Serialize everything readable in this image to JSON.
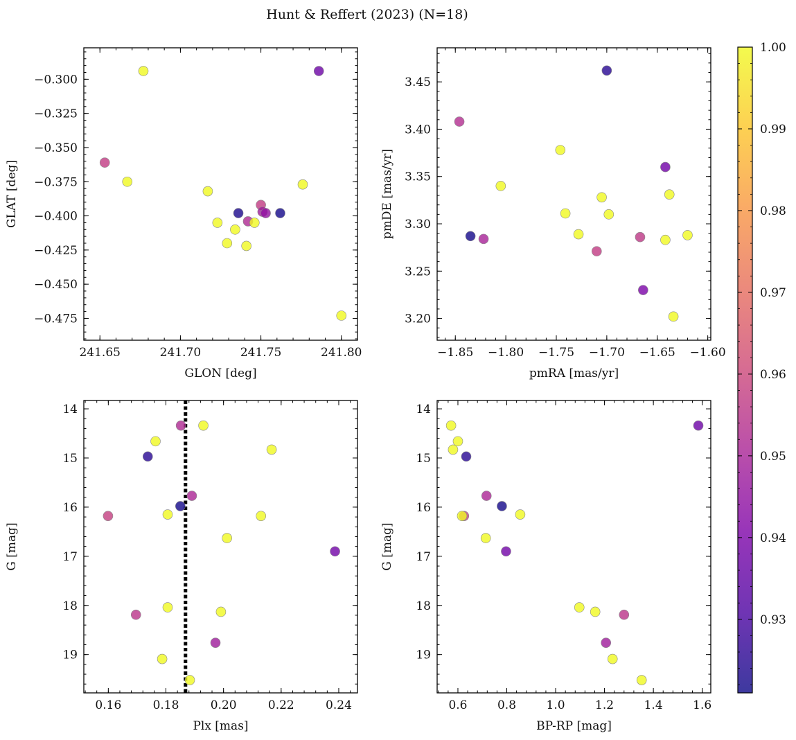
{
  "figure": {
    "title": "Hunt & Reffert (2023) (N=18)",
    "colorbar": {
      "min": 0.921,
      "max": 1.0,
      "ticks": [
        0.93,
        0.94,
        0.95,
        0.96,
        0.97,
        0.98,
        0.99,
        1.0
      ],
      "tick_labels": [
        "0.93",
        "0.94",
        "0.95",
        "0.96",
        "0.97",
        "0.98",
        "0.99",
        "1.00"
      ],
      "colormap": "plasma"
    },
    "marker_edge_color": "#888888"
  },
  "chart_data": [
    {
      "id": "glon-glat",
      "type": "scatter",
      "title": "",
      "xlabel": "GLON [deg]",
      "ylabel": "GLAT [deg]",
      "xlim": [
        241.64,
        241.81
      ],
      "ylim": [
        -0.491,
        -0.277
      ],
      "xticks": [
        241.65,
        241.7,
        241.75,
        241.8
      ],
      "xtick_labels": [
        "241.65",
        "241.70",
        "241.75",
        "241.80"
      ],
      "yticks": [
        -0.3,
        -0.325,
        -0.35,
        -0.375,
        -0.4,
        -0.425,
        -0.45,
        -0.475
      ],
      "ytick_labels": [
        "−0.300",
        "−0.325",
        "−0.350",
        "−0.375",
        "−0.400",
        "−0.425",
        "−0.450",
        "−0.475"
      ],
      "points": [
        {
          "x": 241.677,
          "y": -0.294,
          "c": 1.0
        },
        {
          "x": 241.786,
          "y": -0.294,
          "c": 0.937
        },
        {
          "x": 241.653,
          "y": -0.361,
          "c": 0.957
        },
        {
          "x": 241.667,
          "y": -0.375,
          "c": 1.0
        },
        {
          "x": 241.717,
          "y": -0.382,
          "c": 1.0
        },
        {
          "x": 241.776,
          "y": -0.377,
          "c": 1.0
        },
        {
          "x": 241.736,
          "y": -0.398,
          "c": 0.923
        },
        {
          "x": 241.762,
          "y": -0.398,
          "c": 0.922
        },
        {
          "x": 241.75,
          "y": -0.392,
          "c": 0.957
        },
        {
          "x": 241.751,
          "y": -0.397,
          "c": 0.948
        },
        {
          "x": 241.753,
          "y": -0.398,
          "c": 0.945
        },
        {
          "x": 241.742,
          "y": -0.404,
          "c": 0.952
        },
        {
          "x": 241.746,
          "y": -0.405,
          "c": 1.0
        },
        {
          "x": 241.723,
          "y": -0.405,
          "c": 1.0
        },
        {
          "x": 241.734,
          "y": -0.41,
          "c": 1.0
        },
        {
          "x": 241.729,
          "y": -0.42,
          "c": 1.0
        },
        {
          "x": 241.741,
          "y": -0.422,
          "c": 1.0
        },
        {
          "x": 241.8,
          "y": -0.473,
          "c": 1.0
        }
      ]
    },
    {
      "id": "pmra-pmde",
      "type": "scatter",
      "title": "",
      "xlabel": "pmRA [mas/yr]",
      "ylabel": "pmDE [mas/yr]",
      "xlim": [
        -1.868,
        -1.597
      ],
      "ylim": [
        3.177,
        3.486
      ],
      "xticks": [
        -1.85,
        -1.8,
        -1.75,
        -1.7,
        -1.65,
        -1.6
      ],
      "xtick_labels": [
        "−1.85",
        "−1.80",
        "−1.75",
        "−1.70",
        "−1.65",
        "−1.60"
      ],
      "yticks": [
        3.2,
        3.25,
        3.3,
        3.35,
        3.4,
        3.45
      ],
      "ytick_labels": [
        "3.20",
        "3.25",
        "3.30",
        "3.35",
        "3.40",
        "3.45"
      ],
      "points": [
        {
          "x": -1.7,
          "y": 3.462,
          "c": 0.925
        },
        {
          "x": -1.846,
          "y": 3.408,
          "c": 0.953
        },
        {
          "x": -1.746,
          "y": 3.378,
          "c": 1.0
        },
        {
          "x": -1.642,
          "y": 3.36,
          "c": 0.938
        },
        {
          "x": -1.805,
          "y": 3.34,
          "c": 1.0
        },
        {
          "x": -1.638,
          "y": 3.331,
          "c": 1.0
        },
        {
          "x": -1.705,
          "y": 3.328,
          "c": 1.0
        },
        {
          "x": -1.741,
          "y": 3.311,
          "c": 1.0
        },
        {
          "x": -1.698,
          "y": 3.31,
          "c": 1.0
        },
        {
          "x": -1.728,
          "y": 3.289,
          "c": 1.0
        },
        {
          "x": -1.62,
          "y": 3.288,
          "c": 1.0
        },
        {
          "x": -1.835,
          "y": 3.287,
          "c": 0.922
        },
        {
          "x": -1.667,
          "y": 3.286,
          "c": 0.956
        },
        {
          "x": -1.822,
          "y": 3.284,
          "c": 0.95
        },
        {
          "x": -1.642,
          "y": 3.283,
          "c": 1.0
        },
        {
          "x": -1.71,
          "y": 3.271,
          "c": 0.957
        },
        {
          "x": -1.664,
          "y": 3.23,
          "c": 0.94
        },
        {
          "x": -1.634,
          "y": 3.202,
          "c": 1.0
        }
      ]
    },
    {
      "id": "plx-g",
      "type": "scatter",
      "title": "",
      "xlabel": "Plx [mas]",
      "ylabel": "G [mag]",
      "xlim": [
        0.1515,
        0.2465
      ],
      "ylim": [
        19.78,
        13.83
      ],
      "inverted_y": true,
      "vline": {
        "x": 0.1868,
        "style": "dotted",
        "color": "#000000"
      },
      "xticks": [
        0.16,
        0.18,
        0.2,
        0.22,
        0.24
      ],
      "xtick_labels": [
        "0.16",
        "0.18",
        "0.20",
        "0.22",
        "0.24"
      ],
      "yticks": [
        14,
        15,
        16,
        17,
        18,
        19
      ],
      "ytick_labels": [
        "14",
        "15",
        "16",
        "17",
        "18",
        "19"
      ],
      "points": [
        {
          "x": 0.1852,
          "y": 14.34,
          "c": 0.952
        },
        {
          "x": 0.193,
          "y": 14.34,
          "c": 1.0
        },
        {
          "x": 0.1764,
          "y": 14.66,
          "c": 1.0
        },
        {
          "x": 0.2167,
          "y": 14.83,
          "c": 1.0
        },
        {
          "x": 0.1737,
          "y": 14.97,
          "c": 0.925
        },
        {
          "x": 0.189,
          "y": 15.77,
          "c": 0.951
        },
        {
          "x": 0.185,
          "y": 15.98,
          "c": 0.922
        },
        {
          "x": 0.1806,
          "y": 16.15,
          "c": 1.0
        },
        {
          "x": 0.1599,
          "y": 16.18,
          "c": 0.958
        },
        {
          "x": 0.213,
          "y": 16.18,
          "c": 1.0
        },
        {
          "x": 0.2012,
          "y": 16.63,
          "c": 1.0
        },
        {
          "x": 0.2387,
          "y": 16.9,
          "c": 0.938
        },
        {
          "x": 0.1806,
          "y": 18.04,
          "c": 1.0
        },
        {
          "x": 0.1991,
          "y": 18.13,
          "c": 1.0
        },
        {
          "x": 0.1696,
          "y": 18.19,
          "c": 0.955
        },
        {
          "x": 0.1972,
          "y": 18.76,
          "c": 0.948
        },
        {
          "x": 0.1787,
          "y": 19.09,
          "c": 1.0
        },
        {
          "x": 0.1883,
          "y": 19.52,
          "c": 1.0
        }
      ]
    },
    {
      "id": "bprp-g",
      "type": "scatter",
      "title": "",
      "xlabel": "BP-RP [mag]",
      "ylabel": "G [mag]",
      "xlim": [
        0.515,
        1.635
      ],
      "ylim": [
        19.78,
        13.83
      ],
      "inverted_y": true,
      "xticks": [
        0.6,
        0.8,
        1.0,
        1.2,
        1.4,
        1.6
      ],
      "xtick_labels": [
        "0.6",
        "0.8",
        "1.0",
        "1.2",
        "1.4",
        "1.6"
      ],
      "yticks": [
        14,
        15,
        16,
        17,
        18,
        19
      ],
      "ytick_labels": [
        "14",
        "15",
        "16",
        "17",
        "18",
        "19"
      ],
      "points": [
        {
          "x": 0.572,
          "y": 14.34,
          "c": 1.0
        },
        {
          "x": 1.584,
          "y": 14.34,
          "c": 0.937
        },
        {
          "x": 0.6,
          "y": 14.66,
          "c": 1.0
        },
        {
          "x": 0.58,
          "y": 14.83,
          "c": 1.0
        },
        {
          "x": 0.634,
          "y": 14.97,
          "c": 0.925
        },
        {
          "x": 0.717,
          "y": 15.77,
          "c": 0.951
        },
        {
          "x": 0.78,
          "y": 15.98,
          "c": 0.922
        },
        {
          "x": 0.855,
          "y": 16.15,
          "c": 1.0
        },
        {
          "x": 0.625,
          "y": 16.18,
          "c": 0.958
        },
        {
          "x": 0.617,
          "y": 16.18,
          "c": 1.0
        },
        {
          "x": 0.714,
          "y": 16.63,
          "c": 1.0
        },
        {
          "x": 0.797,
          "y": 16.9,
          "c": 0.938
        },
        {
          "x": 1.097,
          "y": 18.04,
          "c": 1.0
        },
        {
          "x": 1.162,
          "y": 18.13,
          "c": 1.0
        },
        {
          "x": 1.28,
          "y": 18.19,
          "c": 0.955
        },
        {
          "x": 1.206,
          "y": 18.76,
          "c": 0.948
        },
        {
          "x": 1.233,
          "y": 19.09,
          "c": 1.0
        },
        {
          "x": 1.352,
          "y": 19.52,
          "c": 1.0
        }
      ]
    }
  ]
}
